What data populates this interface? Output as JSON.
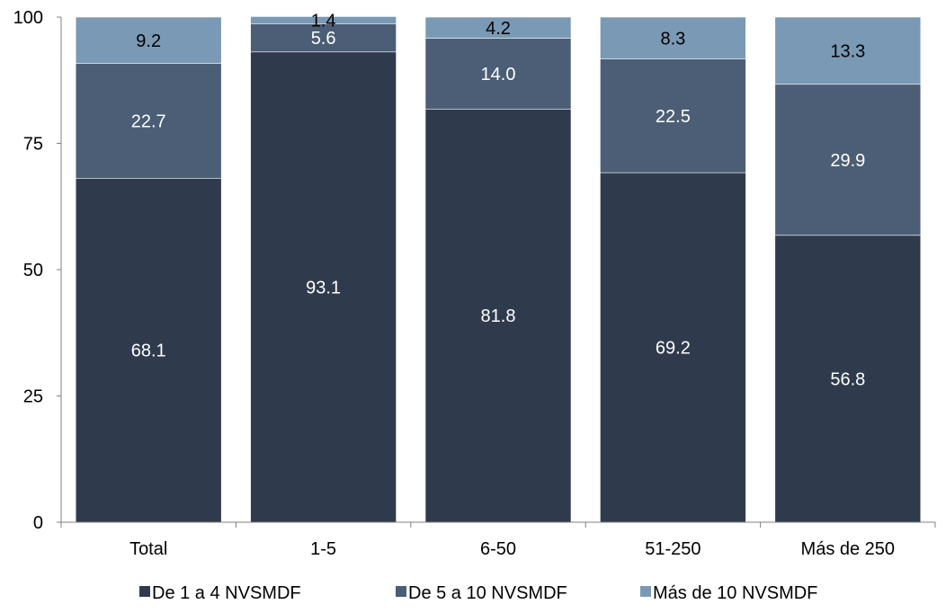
{
  "chart_data": {
    "type": "bar",
    "stacked": true,
    "categories": [
      "Total",
      "1-5",
      "6-50",
      "51-250",
      "Más de 250"
    ],
    "series": [
      {
        "name": "De 1 a 4 NVSMDF",
        "values": [
          68.1,
          93.1,
          81.8,
          69.2,
          56.8
        ],
        "color": "#2f3b4d",
        "label_color": "#ffffff"
      },
      {
        "name": "De 5  a 10 NVSMDF",
        "values": [
          22.7,
          5.6,
          14.0,
          22.5,
          29.9
        ],
        "color": "#4b5e75",
        "label_color": "#ffffff"
      },
      {
        "name": "Más de 10 NVSMDF",
        "values": [
          9.2,
          1.4,
          4.2,
          8.3,
          13.3
        ],
        "color": "#7a99b4",
        "label_color": "#000000"
      }
    ],
    "data_labels": [
      [
        "68.1",
        "93.1",
        "81.8",
        "69.2",
        "56.8"
      ],
      [
        "22.7",
        "5.6",
        "14.0",
        "22.5",
        "29.9"
      ],
      [
        "9.2",
        "1.4",
        "4.2",
        "8.3",
        "13.3"
      ]
    ],
    "y_ticks": [
      0,
      25,
      50,
      75,
      100
    ],
    "y_tick_labels": [
      "0",
      "25",
      "50",
      "75",
      "100"
    ],
    "ylim": [
      0,
      100
    ],
    "grid": false,
    "legend_position": "bottom",
    "title": "",
    "xlabel": "",
    "ylabel": ""
  }
}
